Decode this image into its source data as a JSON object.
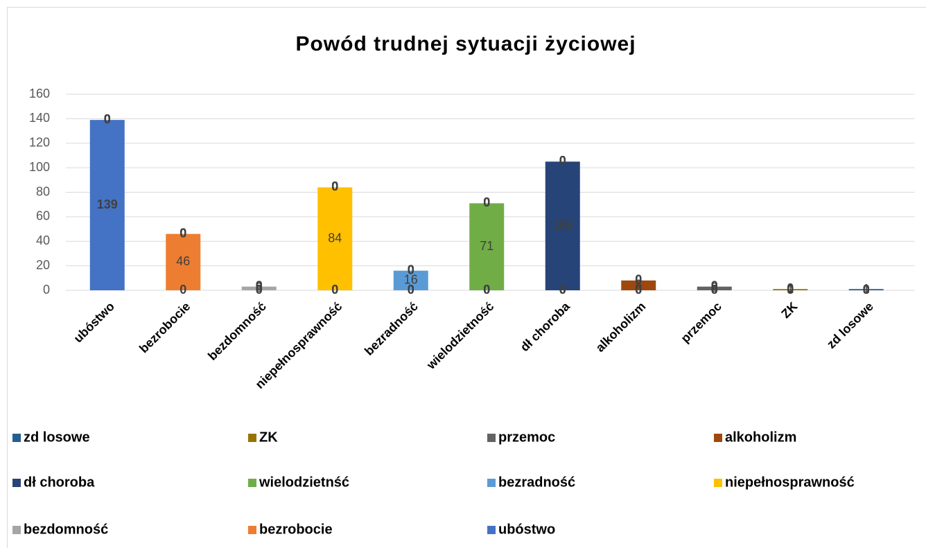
{
  "chart_data": {
    "type": "stacked_bar",
    "title": "Powód trudnej sytuacji życiowej",
    "categories": [
      "ubóstwo",
      "bezrobocie",
      "bezdomność",
      "niepełnosprawność",
      "bezradność",
      "wielodzietność",
      "dł choroba",
      "alkoholizm",
      "przemoc",
      "ZK",
      "zd losowe"
    ],
    "series": [
      {
        "name": "ubóstwo",
        "color": "#4472c4",
        "values": [
          139,
          0,
          0,
          0,
          0,
          0,
          0,
          0,
          0,
          0,
          0
        ]
      },
      {
        "name": "bezrobocie",
        "color": "#ed7d31",
        "values": [
          0,
          46,
          0,
          0,
          0,
          0,
          0,
          0,
          0,
          0,
          0
        ]
      },
      {
        "name": "bezdomność",
        "color": "#a5a5a5",
        "values": [
          0,
          0,
          3,
          0,
          0,
          0,
          0,
          0,
          0,
          0,
          0
        ]
      },
      {
        "name": "niepełnosprawność",
        "color": "#ffc000",
        "values": [
          0,
          0,
          0,
          84,
          0,
          0,
          0,
          0,
          0,
          0,
          0
        ]
      },
      {
        "name": "bezradność",
        "color": "#5b9bd5",
        "values": [
          0,
          0,
          0,
          0,
          16,
          0,
          0,
          0,
          0,
          0,
          0
        ]
      },
      {
        "name": "wielodzietnść",
        "color": "#70ad47",
        "values": [
          0,
          0,
          0,
          0,
          0,
          71,
          0,
          0,
          0,
          0,
          0
        ]
      },
      {
        "name": "dł choroba",
        "color": "#264478",
        "values": [
          0,
          0,
          0,
          0,
          0,
          0,
          105,
          0,
          0,
          0,
          0
        ]
      },
      {
        "name": "alkoholizm",
        "color": "#9e480e",
        "values": [
          0,
          0,
          0,
          0,
          0,
          0,
          0,
          8,
          0,
          0,
          0
        ]
      },
      {
        "name": "przemoc",
        "color": "#636363",
        "values": [
          0,
          0,
          0,
          0,
          0,
          0,
          0,
          0,
          3,
          0,
          0
        ]
      },
      {
        "name": "ZK",
        "color": "#997300",
        "values": [
          0,
          0,
          0,
          0,
          0,
          0,
          0,
          0,
          0,
          1,
          0
        ]
      },
      {
        "name": "zd losowe",
        "color": "#255e91",
        "values": [
          0,
          0,
          0,
          0,
          0,
          0,
          0,
          0,
          0,
          0,
          1
        ]
      }
    ],
    "ylim": [
      0,
      160
    ],
    "yticks": [
      0,
      20,
      40,
      60,
      80,
      100,
      120,
      140,
      160
    ],
    "grid": true,
    "legend": "bottom"
  }
}
